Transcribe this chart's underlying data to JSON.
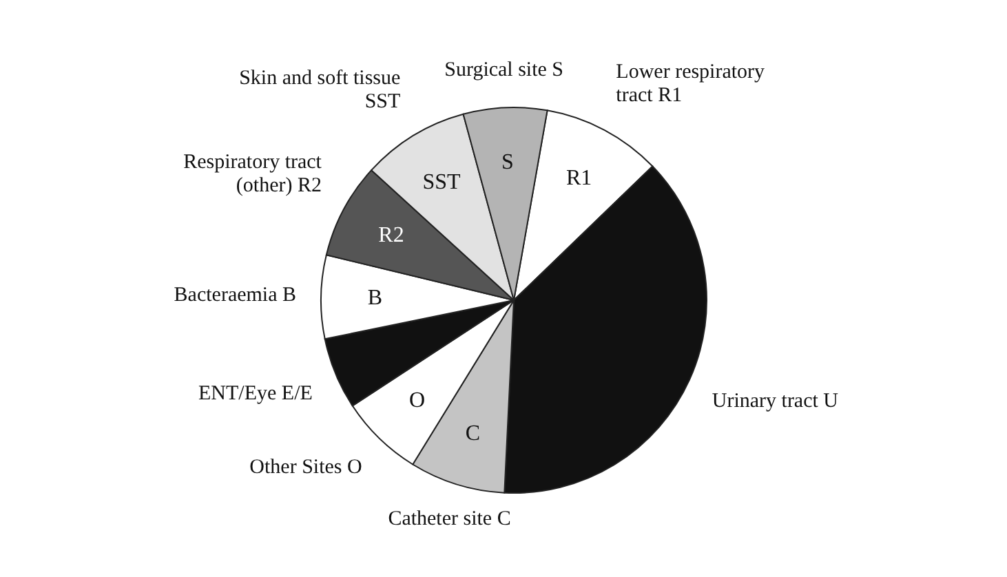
{
  "chart_data": {
    "type": "pie",
    "categories": [
      "Lower respiratory tract R1",
      "Urinary tract U",
      "Catheter site C",
      "Other Sites O",
      "ENT/Eye E/E",
      "Bacteraemia B",
      "Respiratory tract (other) R2",
      "Skin and soft tissue SST",
      "Surgical site S"
    ],
    "values": [
      10,
      38,
      8,
      7,
      6,
      7,
      8,
      9,
      7
    ],
    "colors": [
      "#ffffff",
      "#111111",
      "#c4c4c4",
      "#ffffff",
      "#111111",
      "#ffffff",
      "#555555",
      "#e2e2e2",
      "#b4b4b4"
    ],
    "annotations": [
      {
        "text": "R1",
        "x": "Lower respiratory tract R1"
      },
      {
        "text": "C",
        "x": "Catheter site C"
      },
      {
        "text": "O",
        "x": "Other Sites O"
      },
      {
        "text": "B",
        "x": "Bacteraemia B"
      },
      {
        "text": "R2",
        "x": "Respiratory tract (other) R2"
      },
      {
        "text": "SST",
        "x": "Skin and soft tissue SST"
      },
      {
        "text": "S",
        "x": "Surgical site S"
      }
    ]
  }
}
